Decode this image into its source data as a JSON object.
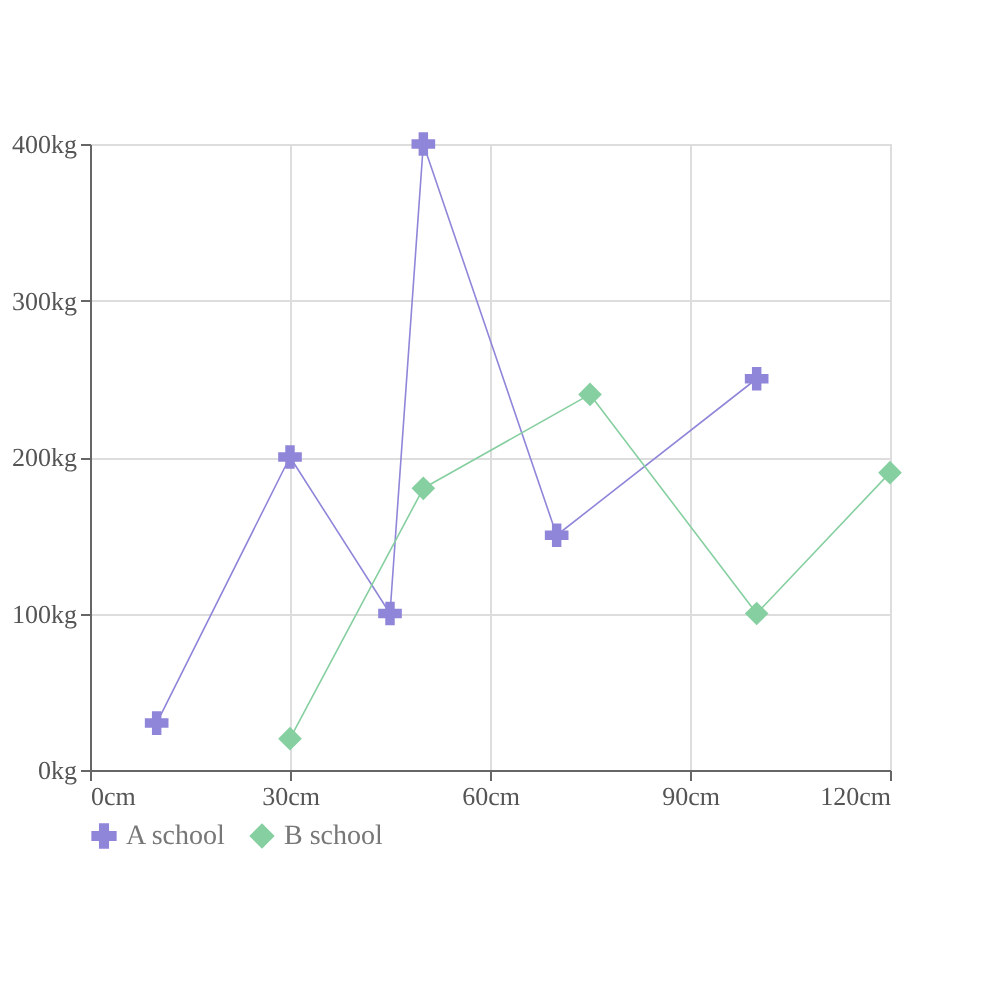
{
  "chart_data": {
    "type": "line",
    "xlim": [
      0,
      120
    ],
    "xticks": [
      {
        "value": 0,
        "label": "0cm"
      },
      {
        "value": 30,
        "label": "30cm"
      },
      {
        "value": 60,
        "label": "60cm"
      },
      {
        "value": 90,
        "label": "90cm"
      },
      {
        "value": 120,
        "label": "120cm"
      }
    ],
    "ylim": [
      0,
      400
    ],
    "yticks": [
      {
        "value": 0,
        "label": "0kg"
      },
      {
        "value": 100,
        "label": "100kg"
      },
      {
        "value": 200,
        "label": "200kg"
      },
      {
        "value": 300,
        "label": "300kg"
      },
      {
        "value": 400,
        "label": "400kg"
      }
    ],
    "grid": true,
    "legend": "bottom",
    "series": [
      {
        "name": "A school",
        "color": "#8f86d9",
        "marker": "cross",
        "x": [
          10,
          30,
          45,
          50,
          70,
          100
        ],
        "values": [
          30,
          200,
          100,
          400,
          150,
          250
        ]
      },
      {
        "name": "B school",
        "color": "#86cfa0",
        "marker": "diamond",
        "x": [
          30,
          50,
          75,
          100,
          120
        ],
        "values": [
          20,
          180,
          240,
          100,
          190
        ]
      }
    ]
  }
}
